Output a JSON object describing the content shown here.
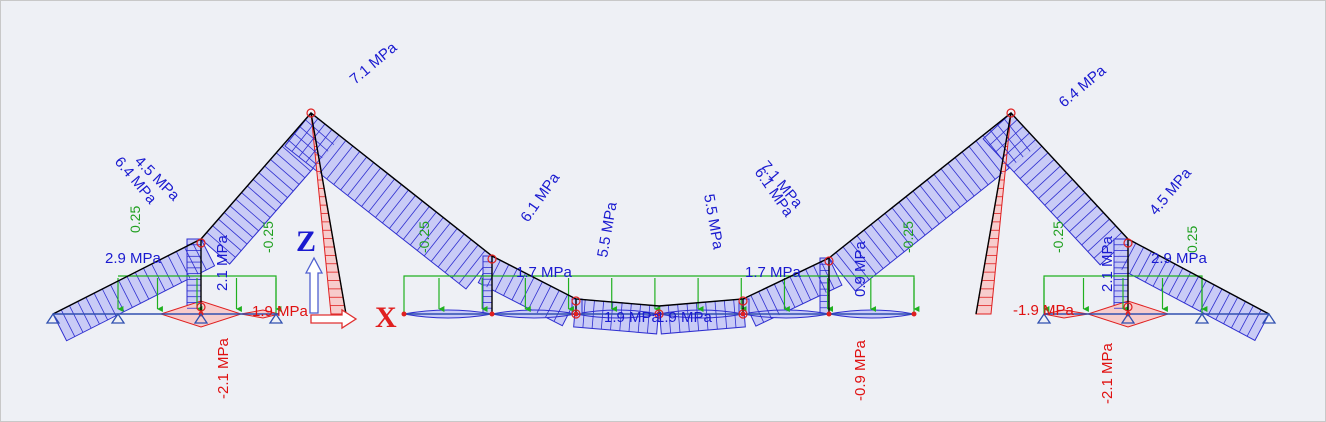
{
  "colors": {
    "background": "#eef0f5",
    "compression_fill": "#c6c8f6",
    "compression_stroke": "#2f2fd0",
    "compression_text": "#1a1ad0",
    "tension_fill": "#f7cccc",
    "tension_stroke": "#e02020",
    "tension_text": "#e01010",
    "load_arrow": "#20b020",
    "load_text": "#20a020",
    "member": "#000000",
    "support": "#3050b0",
    "axis_z": "#1a1ad0",
    "axis_x": "#e02020"
  },
  "axes": {
    "z_label": "Z",
    "x_label": "X"
  },
  "loads": {
    "tag_1": "0.25",
    "tag_2": "-0.25",
    "tag_3": "-0.25",
    "tag_4": "-0.25",
    "tag_5": "-0.25",
    "tag_6": "0.25"
  },
  "stress_labels": {
    "left_rafter_top": "7.1 MPa",
    "left_overlap_a": "6.4 MPa",
    "left_overlap_b": "4.5 MPa",
    "left_eave": "2.9 MPa",
    "left_column": "2.1 MPa",
    "left_base_tension": "-2.1 MPa",
    "left_tie_tension": "1.9 MPa",
    "center_left_slope": "6.1 MPa",
    "center_left_post": "1.7 MPa",
    "center_mid_a": "5.5 MPa",
    "center_mid_b": "5.5 MPa",
    "center_bottom_a": "1.9 MPa",
    "center_bottom_b": "1.9 MPa",
    "center_right_post": "1.7 MPa",
    "center_right_overlap_a": "7.1 MPa",
    "center_right_overlap_b": "6.1 MPa",
    "center_right_column": "0.9 MPa",
    "center_right_tension": "-0.9 MPa",
    "right_rafter_top": "6.4 MPa",
    "right_slope": "4.5 MPa",
    "right_column": "2.1 MPa",
    "right_eave": "2.9 MPa",
    "right_base_tension": "-2.1 MPa",
    "right_tie_tension": "-1.9 MPa"
  }
}
